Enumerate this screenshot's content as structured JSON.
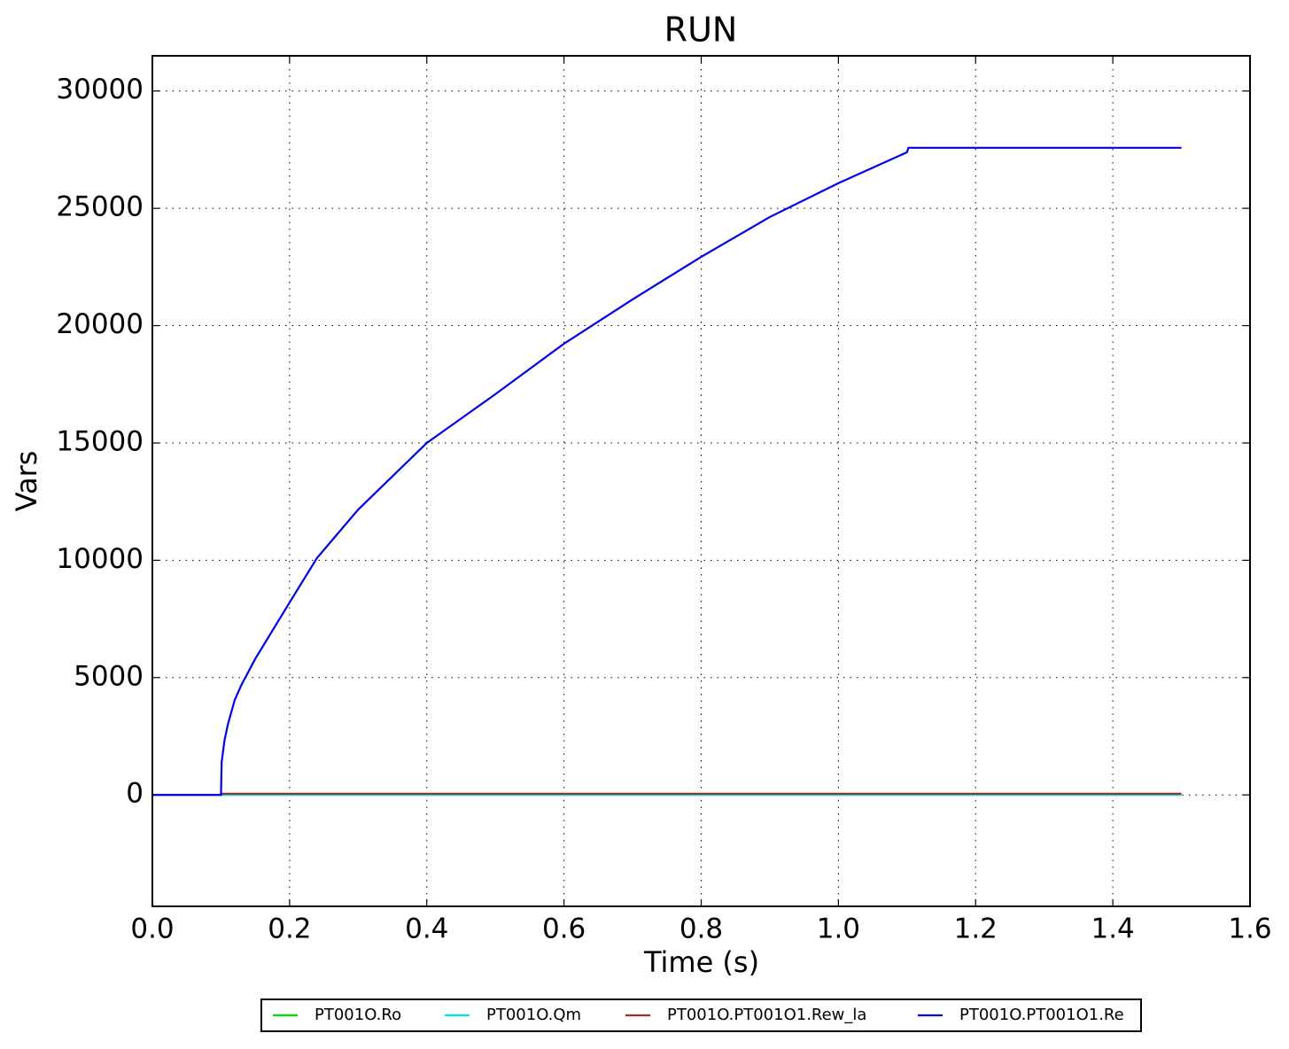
{
  "chart_data": {
    "type": "line",
    "title": "RUN",
    "x_label": "Time (s)",
    "y_label": "Vars",
    "xlim": [
      0,
      1.6
    ],
    "ylim": [
      -4750,
      31500
    ],
    "xticks": [
      {
        "value": 0,
        "label": "0.0"
      },
      0.2,
      0.4,
      0.6,
      0.8,
      {
        "value": 1,
        "label": "1.0"
      },
      1.2,
      1.4,
      1.6
    ],
    "yticks": [
      0,
      5000,
      10000,
      15000,
      20000,
      25000,
      30000
    ],
    "grid": true,
    "legend": "bottom",
    "series": [
      {
        "name": "PT001O.Ro",
        "color": "#00e000",
        "x": [
          0,
          1.5
        ],
        "values": [
          0,
          0
        ]
      },
      {
        "name": "PT001O.Qm",
        "color": "#00e5e5",
        "x": [
          0,
          1.5
        ],
        "values": [
          0,
          0
        ]
      },
      {
        "name": "PT001O.PT001O1.Rew_la",
        "color": "#a52a2a",
        "x": [
          0,
          0.1,
          0.1,
          1.5
        ],
        "values": [
          0,
          0,
          50,
          50
        ]
      },
      {
        "name": "PT001O.PT001O1.Re",
        "color": "#0000ee",
        "x": [
          0,
          0.1,
          0.101,
          0.105,
          0.11,
          0.12,
          0.13,
          0.15,
          0.2,
          0.24,
          0.3,
          0.4,
          0.5,
          0.6,
          0.7,
          0.8,
          0.9,
          1.0,
          1.1,
          1.102,
          1.5
        ],
        "values": [
          0,
          0,
          1400,
          2300,
          3000,
          4040,
          4700,
          5800,
          8200,
          10100,
          12160,
          15000,
          17080,
          19230,
          21120,
          22930,
          24630,
          26070,
          27390,
          27580,
          27580
        ]
      }
    ]
  }
}
